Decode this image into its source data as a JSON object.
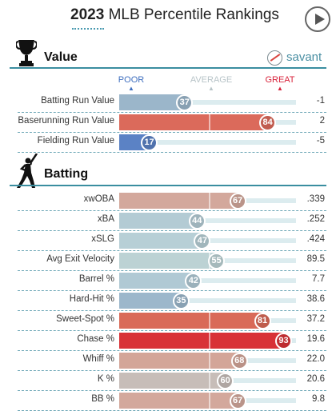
{
  "header": {
    "year": "2023",
    "title": "MLB Percentile Rankings",
    "savant_text": "savant"
  },
  "scale_labels": {
    "poor": "POOR",
    "average": "AVERAGE",
    "great": "GREAT"
  },
  "colors": {
    "poor": "#3f6fbf",
    "average": "#c0c0c0",
    "great": "#d8223a",
    "accent": "#3a8ea0",
    "track": "#dcecef"
  },
  "sections": [
    {
      "title": "Value",
      "icon": "trophy-icon"
    },
    {
      "title": "Batting",
      "icon": "batter-icon"
    }
  ],
  "chart_data": {
    "type": "bar",
    "title": "2023 MLB Percentile Rankings",
    "xlim": [
      0,
      100
    ],
    "groups": [
      {
        "name": "Value",
        "metrics": [
          {
            "label": "Batting Run Value",
            "percentile": 37,
            "stat": "-1",
            "color": "#9bb6ca"
          },
          {
            "label": "Baserunning Run Value",
            "percentile": 84,
            "stat": "2",
            "color": "#db6a5b"
          },
          {
            "label": "Fielding Run Value",
            "percentile": 17,
            "stat": "-5",
            "color": "#5b82c5"
          }
        ]
      },
      {
        "name": "Batting",
        "metrics": [
          {
            "label": "xwOBA",
            "percentile": 67,
            "stat": ".339",
            "color": "#d3a89c"
          },
          {
            "label": "xBA",
            "percentile": 44,
            "stat": ".252",
            "color": "#b3cbd4"
          },
          {
            "label": "xSLG",
            "percentile": 47,
            "stat": ".424",
            "color": "#b7cfd6"
          },
          {
            "label": "Avg Exit Velocity",
            "percentile": 55,
            "stat": "89.5",
            "color": "#bcd2d4"
          },
          {
            "label": "Barrel %",
            "percentile": 42,
            "stat": "7.7",
            "color": "#b0c9d4"
          },
          {
            "label": "Hard-Hit %",
            "percentile": 35,
            "stat": "38.6",
            "color": "#9cb7cb"
          },
          {
            "label": "Sweet-Spot %",
            "percentile": 81,
            "stat": "37.2",
            "color": "#d96a58"
          },
          {
            "label": "Chase %",
            "percentile": 93,
            "stat": "19.6",
            "color": "#d83237"
          },
          {
            "label": "Whiff %",
            "percentile": 68,
            "stat": "22.0",
            "color": "#d3a598"
          },
          {
            "label": "K %",
            "percentile": 60,
            "stat": "20.6",
            "color": "#c7bdb8"
          },
          {
            "label": "BB %",
            "percentile": 67,
            "stat": "9.8",
            "color": "#d3a89c"
          }
        ]
      }
    ]
  }
}
